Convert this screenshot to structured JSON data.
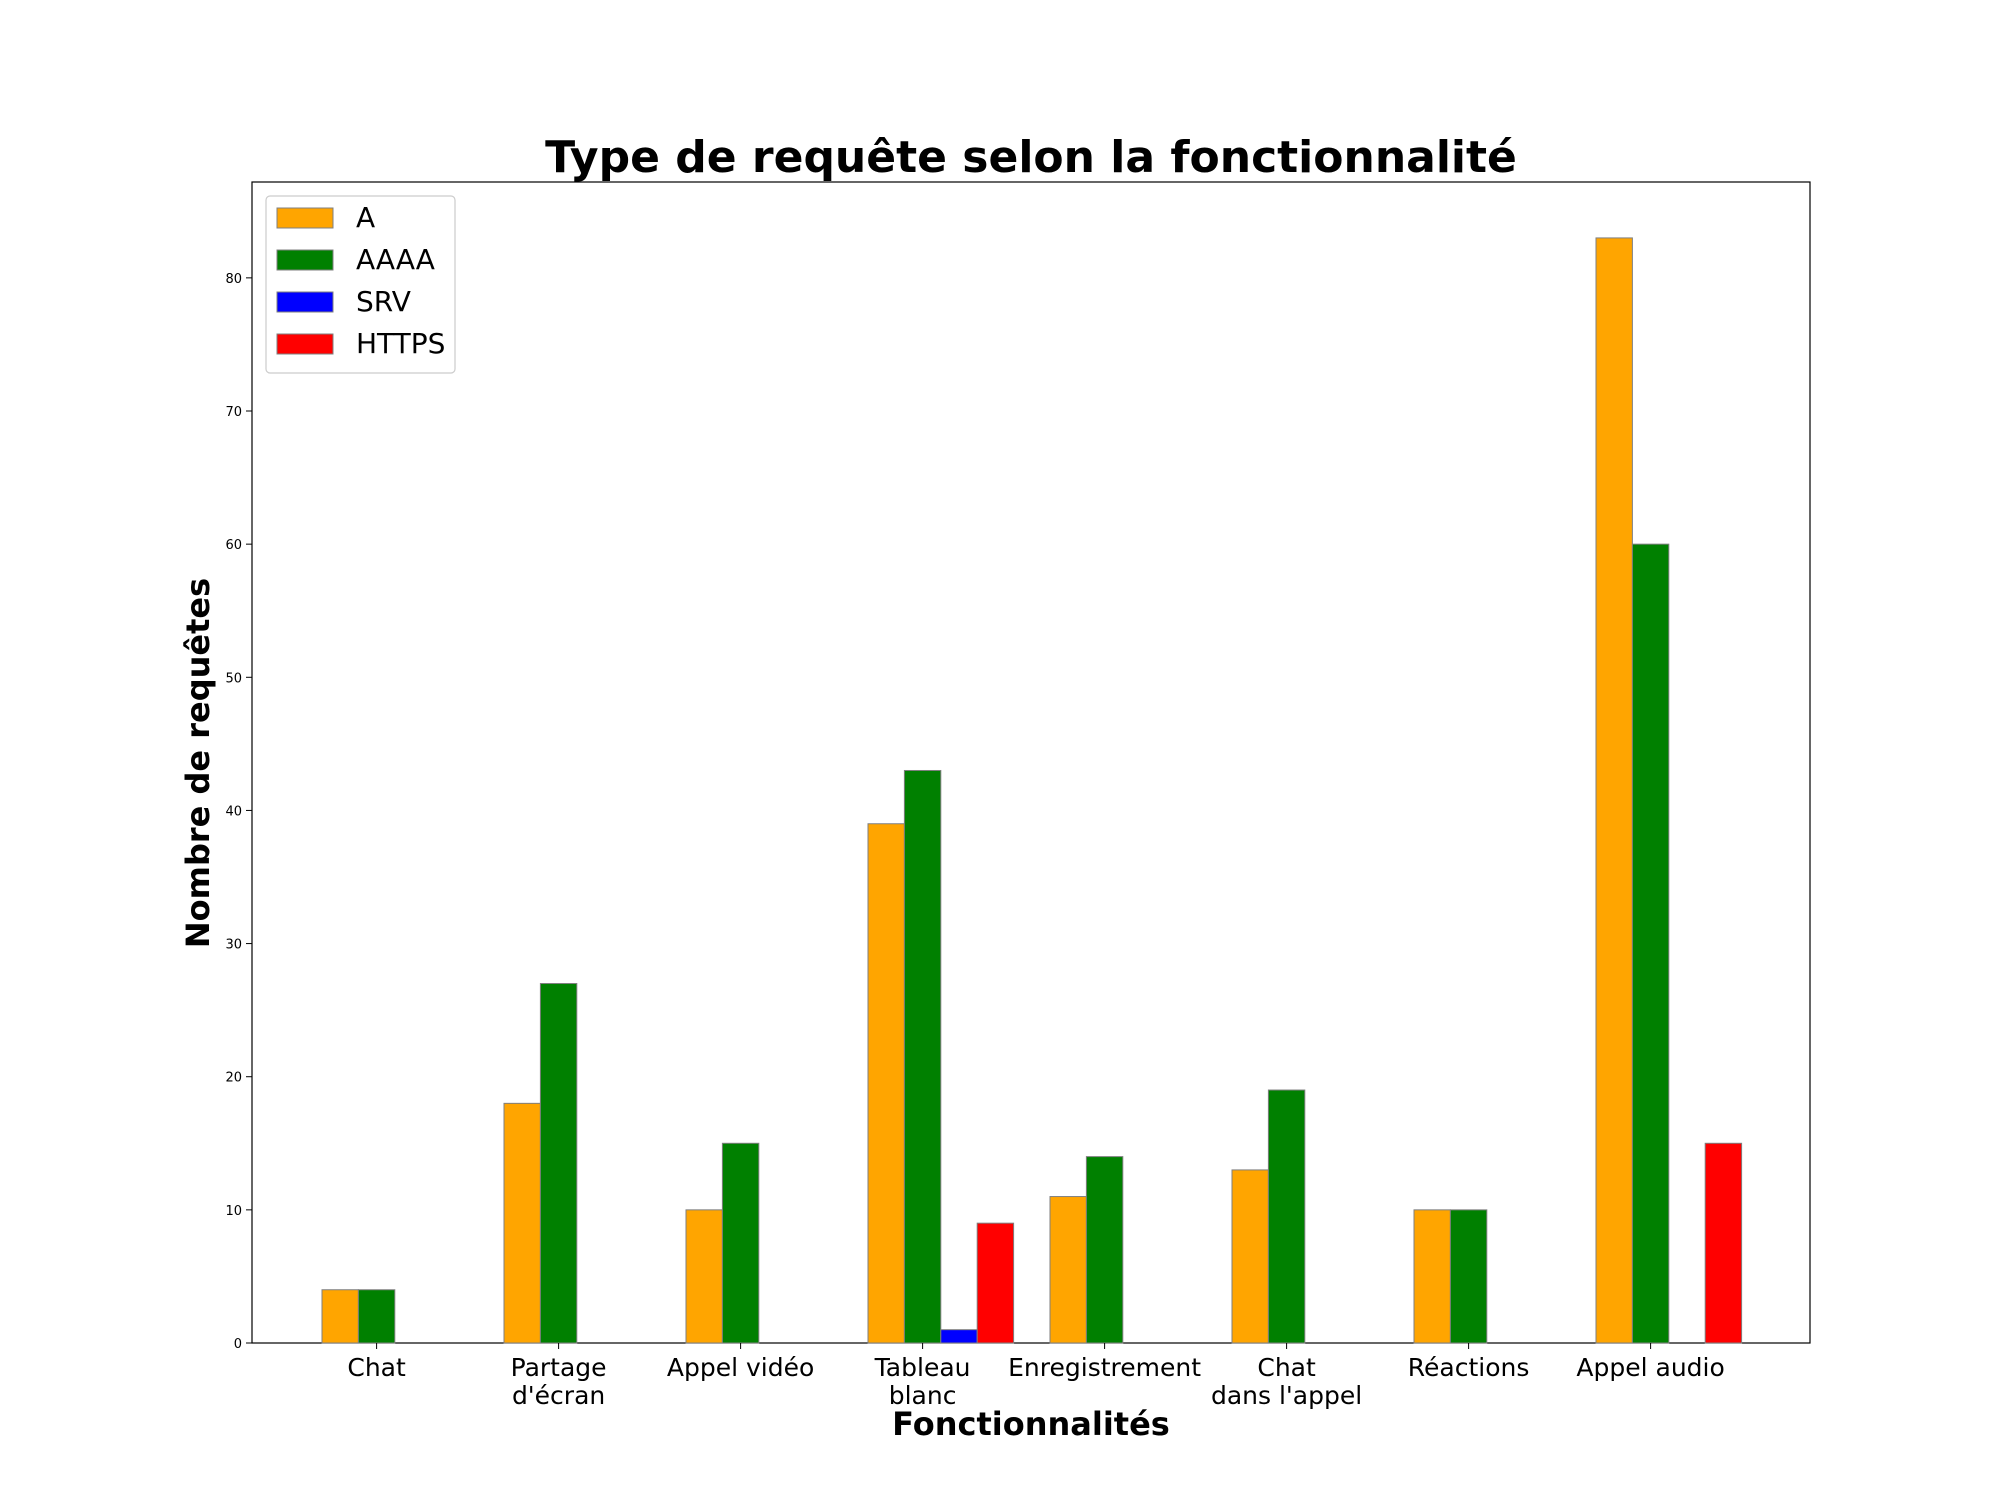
{
  "chart_data": {
    "type": "bar",
    "title": "Type de requête selon la fonctionnalité",
    "xlabel": "Fonctionnalités",
    "ylabel": "Nombre de requêtes",
    "categories": [
      [
        "Chat"
      ],
      [
        "Partage",
        "d'écran"
      ],
      [
        "Appel vidéo"
      ],
      [
        "Tableau",
        "blanc"
      ],
      [
        "Enregistrement"
      ],
      [
        "Chat",
        "dans l'appel"
      ],
      [
        "Réactions"
      ],
      [
        "Appel audio"
      ]
    ],
    "series": [
      {
        "name": "A",
        "color": "#FFA500",
        "values": [
          4,
          18,
          10,
          39,
          11,
          13,
          10,
          83
        ]
      },
      {
        "name": "AAAA",
        "color": "#008000",
        "values": [
          4,
          27,
          15,
          43,
          14,
          19,
          10,
          60
        ]
      },
      {
        "name": "SRV",
        "color": "#0000FF",
        "values": [
          0,
          0,
          0,
          1,
          0,
          0,
          0,
          0
        ]
      },
      {
        "name": "HTTPS",
        "color": "#FF0000",
        "values": [
          0,
          0,
          0,
          9,
          0,
          0,
          0,
          15
        ]
      }
    ],
    "ylim": [
      0,
      87.2
    ],
    "yticks": [
      0,
      10,
      20,
      30,
      40,
      50,
      60,
      70,
      80
    ],
    "legend": "top-left",
    "grid": false
  }
}
